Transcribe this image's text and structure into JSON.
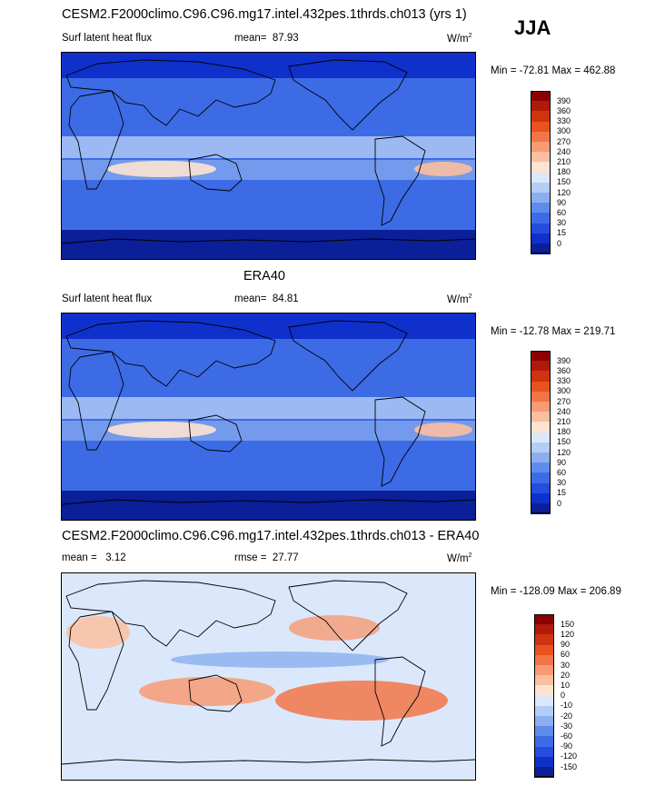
{
  "header": {
    "season": "JJA"
  },
  "panels": [
    {
      "title": "CESM2.F2000climo.C96.C96.mg17.intel.432pes.1thrds.ch013 (yrs 1)",
      "left_label": "Surf latent heat flux",
      "stat_label": "mean=",
      "stat_value": "87.93",
      "units": "W/m",
      "units_exp": "2",
      "minmax": "Min = -72.81 Max = 462.88",
      "kind": "abs"
    },
    {
      "title": "ERA40",
      "left_label": "Surf latent heat flux",
      "stat_label": "mean=",
      "stat_value": "84.81",
      "units": "W/m",
      "units_exp": "2",
      "minmax": "Min = -12.78 Max = 219.71",
      "kind": "abs"
    },
    {
      "title": "CESM2.F2000climo.C96.C96.mg17.intel.432pes.1thrds.ch013 - ERA40",
      "left_label": "mean =",
      "left_value": "3.12",
      "stat_label": "rmse =",
      "stat_value": "27.77",
      "units": "W/m",
      "units_exp": "2",
      "minmax": "Min = -128.09 Max = 206.89",
      "kind": "diff"
    }
  ],
  "colorbars": {
    "abs": {
      "labels": [
        "390",
        "360",
        "330",
        "300",
        "270",
        "240",
        "210",
        "180",
        "150",
        "120",
        "90",
        "60",
        "30",
        "15",
        "0"
      ],
      "colors": [
        "#8b0000",
        "#b01a0a",
        "#d03310",
        "#e8521f",
        "#f27548",
        "#f89a74",
        "#fbbf9f",
        "#fde3d0",
        "#dbe8fb",
        "#b4cdf6",
        "#8aaef0",
        "#5f8cec",
        "#3d6be6",
        "#244ddd",
        "#1030cc",
        "#0a1f98"
      ]
    },
    "diff": {
      "labels": [
        "150",
        "120",
        "90",
        "60",
        "30",
        "20",
        "10",
        "0",
        "-10",
        "-20",
        "-30",
        "-60",
        "-90",
        "-120",
        "-150"
      ],
      "colors": [
        "#8b0000",
        "#b01a0a",
        "#d03310",
        "#e8521f",
        "#f27548",
        "#f89a74",
        "#fbbf9f",
        "#fde3d0",
        "#dbe8fb",
        "#b4cdf6",
        "#8aaef0",
        "#5f8cec",
        "#3d6be6",
        "#244ddd",
        "#1030cc",
        "#0a1f98"
      ]
    }
  }
}
